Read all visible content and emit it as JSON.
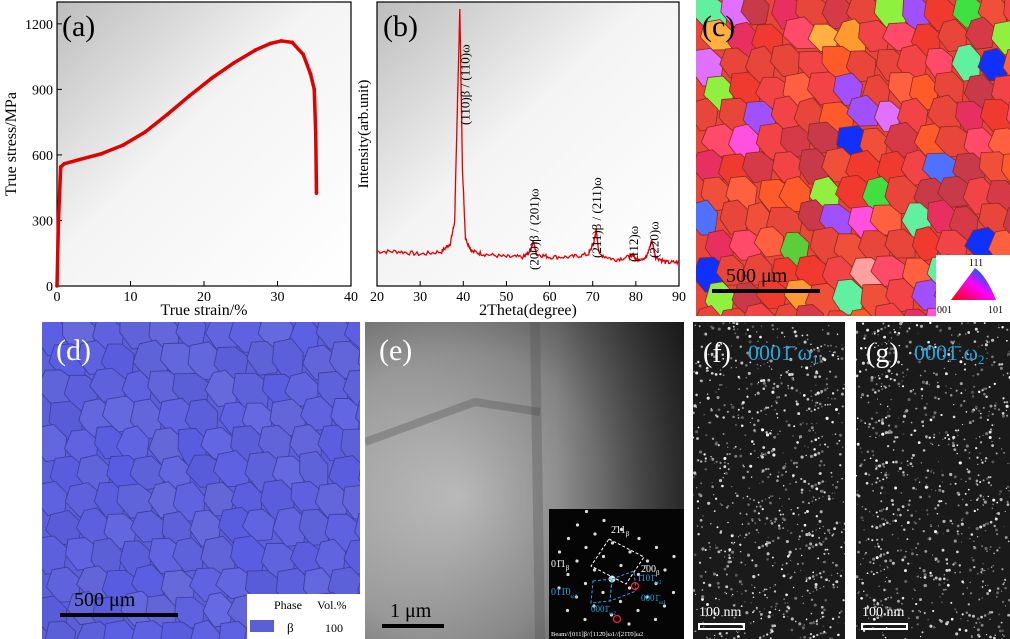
{
  "panels": {
    "a": {
      "label": "(a)"
    },
    "b": {
      "label": "(b)"
    },
    "c": {
      "label": "(c)",
      "scale_bar": "500 μm",
      "ipf_key": {
        "top": "111",
        "left": "001",
        "right": "101"
      }
    },
    "d": {
      "label": "(d)",
      "scale_bar": "500 μm",
      "legend": {
        "col1": "Phase",
        "col2": "Vol.%",
        "phase": "β",
        "value": "100",
        "color": "#5a5fd8"
      }
    },
    "e": {
      "label": "(e)",
      "scale_bar": "1 μm",
      "saed": {
        "l1": "2̄11",
        "l1s": "β",
        "l2": "2̄00",
        "l2s": "β",
        "l3": "01̄1",
        "l3s": "β",
        "l4": "011̄0",
        "l4s": "ω2",
        "l5": "1̄101̄",
        "l5s": "ω1",
        "l6": "0001̄",
        "l6s": "ω1",
        "l7": "0001̄",
        "l7s": "ω2",
        "beam": "Beam//[011]β//[112̄0]ω1//[21̄1̄0]ω2"
      }
    },
    "f": {
      "label": "(f)",
      "title": "0001̄ ω",
      "sub": "1",
      "scale_bar": "100 nm"
    },
    "g": {
      "label": "(g)",
      "title": "0001̄ ω",
      "sub": "2",
      "scale_bar": "100 nm"
    }
  },
  "chart_data": [
    {
      "type": "line",
      "title": "",
      "xlabel": "True strain/%",
      "ylabel": "True stress/MPa",
      "xlim": [
        0,
        40
      ],
      "ylim": [
        0,
        1300
      ],
      "xticks": [
        "0",
        "10",
        "20",
        "30",
        "40"
      ],
      "yticks": [
        "0",
        "300",
        "600",
        "900",
        "1200"
      ],
      "series": [
        {
          "color": "#e00000",
          "x": [
            0,
            0.2,
            0.5,
            1,
            3,
            6,
            9,
            12,
            15,
            18,
            21,
            24,
            27,
            29,
            30.5,
            32,
            33.5,
            34.5,
            35,
            35.2,
            35.3
          ],
          "y": [
            0,
            300,
            545,
            560,
            578,
            605,
            645,
            705,
            785,
            870,
            950,
            1020,
            1080,
            1110,
            1122,
            1115,
            1060,
            970,
            900,
            700,
            425
          ]
        }
      ]
    },
    {
      "type": "line",
      "title": "",
      "xlabel": "2Theta(degree)",
      "ylabel": "Intensity(arb.unit)",
      "xlim": [
        20,
        90
      ],
      "ylim": [
        0,
        100
      ],
      "xticks": [
        "20",
        "30",
        "40",
        "50",
        "60",
        "70",
        "80",
        "90"
      ],
      "series": [
        {
          "color": "#e00000",
          "x": [
            20,
            25,
            30,
            35,
            37,
            38,
            38.6,
            39.2,
            39.8,
            40.5,
            42,
            45,
            50,
            54,
            55.5,
            56.2,
            57,
            60,
            65,
            69,
            70.2,
            70.8,
            71.5,
            75,
            78.5,
            79.3,
            80.2,
            82.5,
            83.7,
            84.6,
            87,
            90
          ],
          "y": [
            9,
            9,
            8,
            9,
            12,
            20,
            60,
            98,
            40,
            14,
            9,
            8,
            7,
            7,
            9,
            13,
            8,
            7,
            7,
            8,
            12,
            17,
            8,
            6,
            7,
            8,
            6,
            7,
            13,
            7,
            5,
            5
          ]
        }
      ],
      "annotations": [
        {
          "text": "(110)β / (110)ω",
          "x": 40.5
        },
        {
          "text": "(200)β / (201)ω",
          "x": 56.5
        },
        {
          "text": "(211)β / (211)ω",
          "x": 71
        },
        {
          "text": "(112)ω",
          "x": 79.6
        },
        {
          "text": "(220)ω",
          "x": 84.3
        }
      ]
    }
  ]
}
